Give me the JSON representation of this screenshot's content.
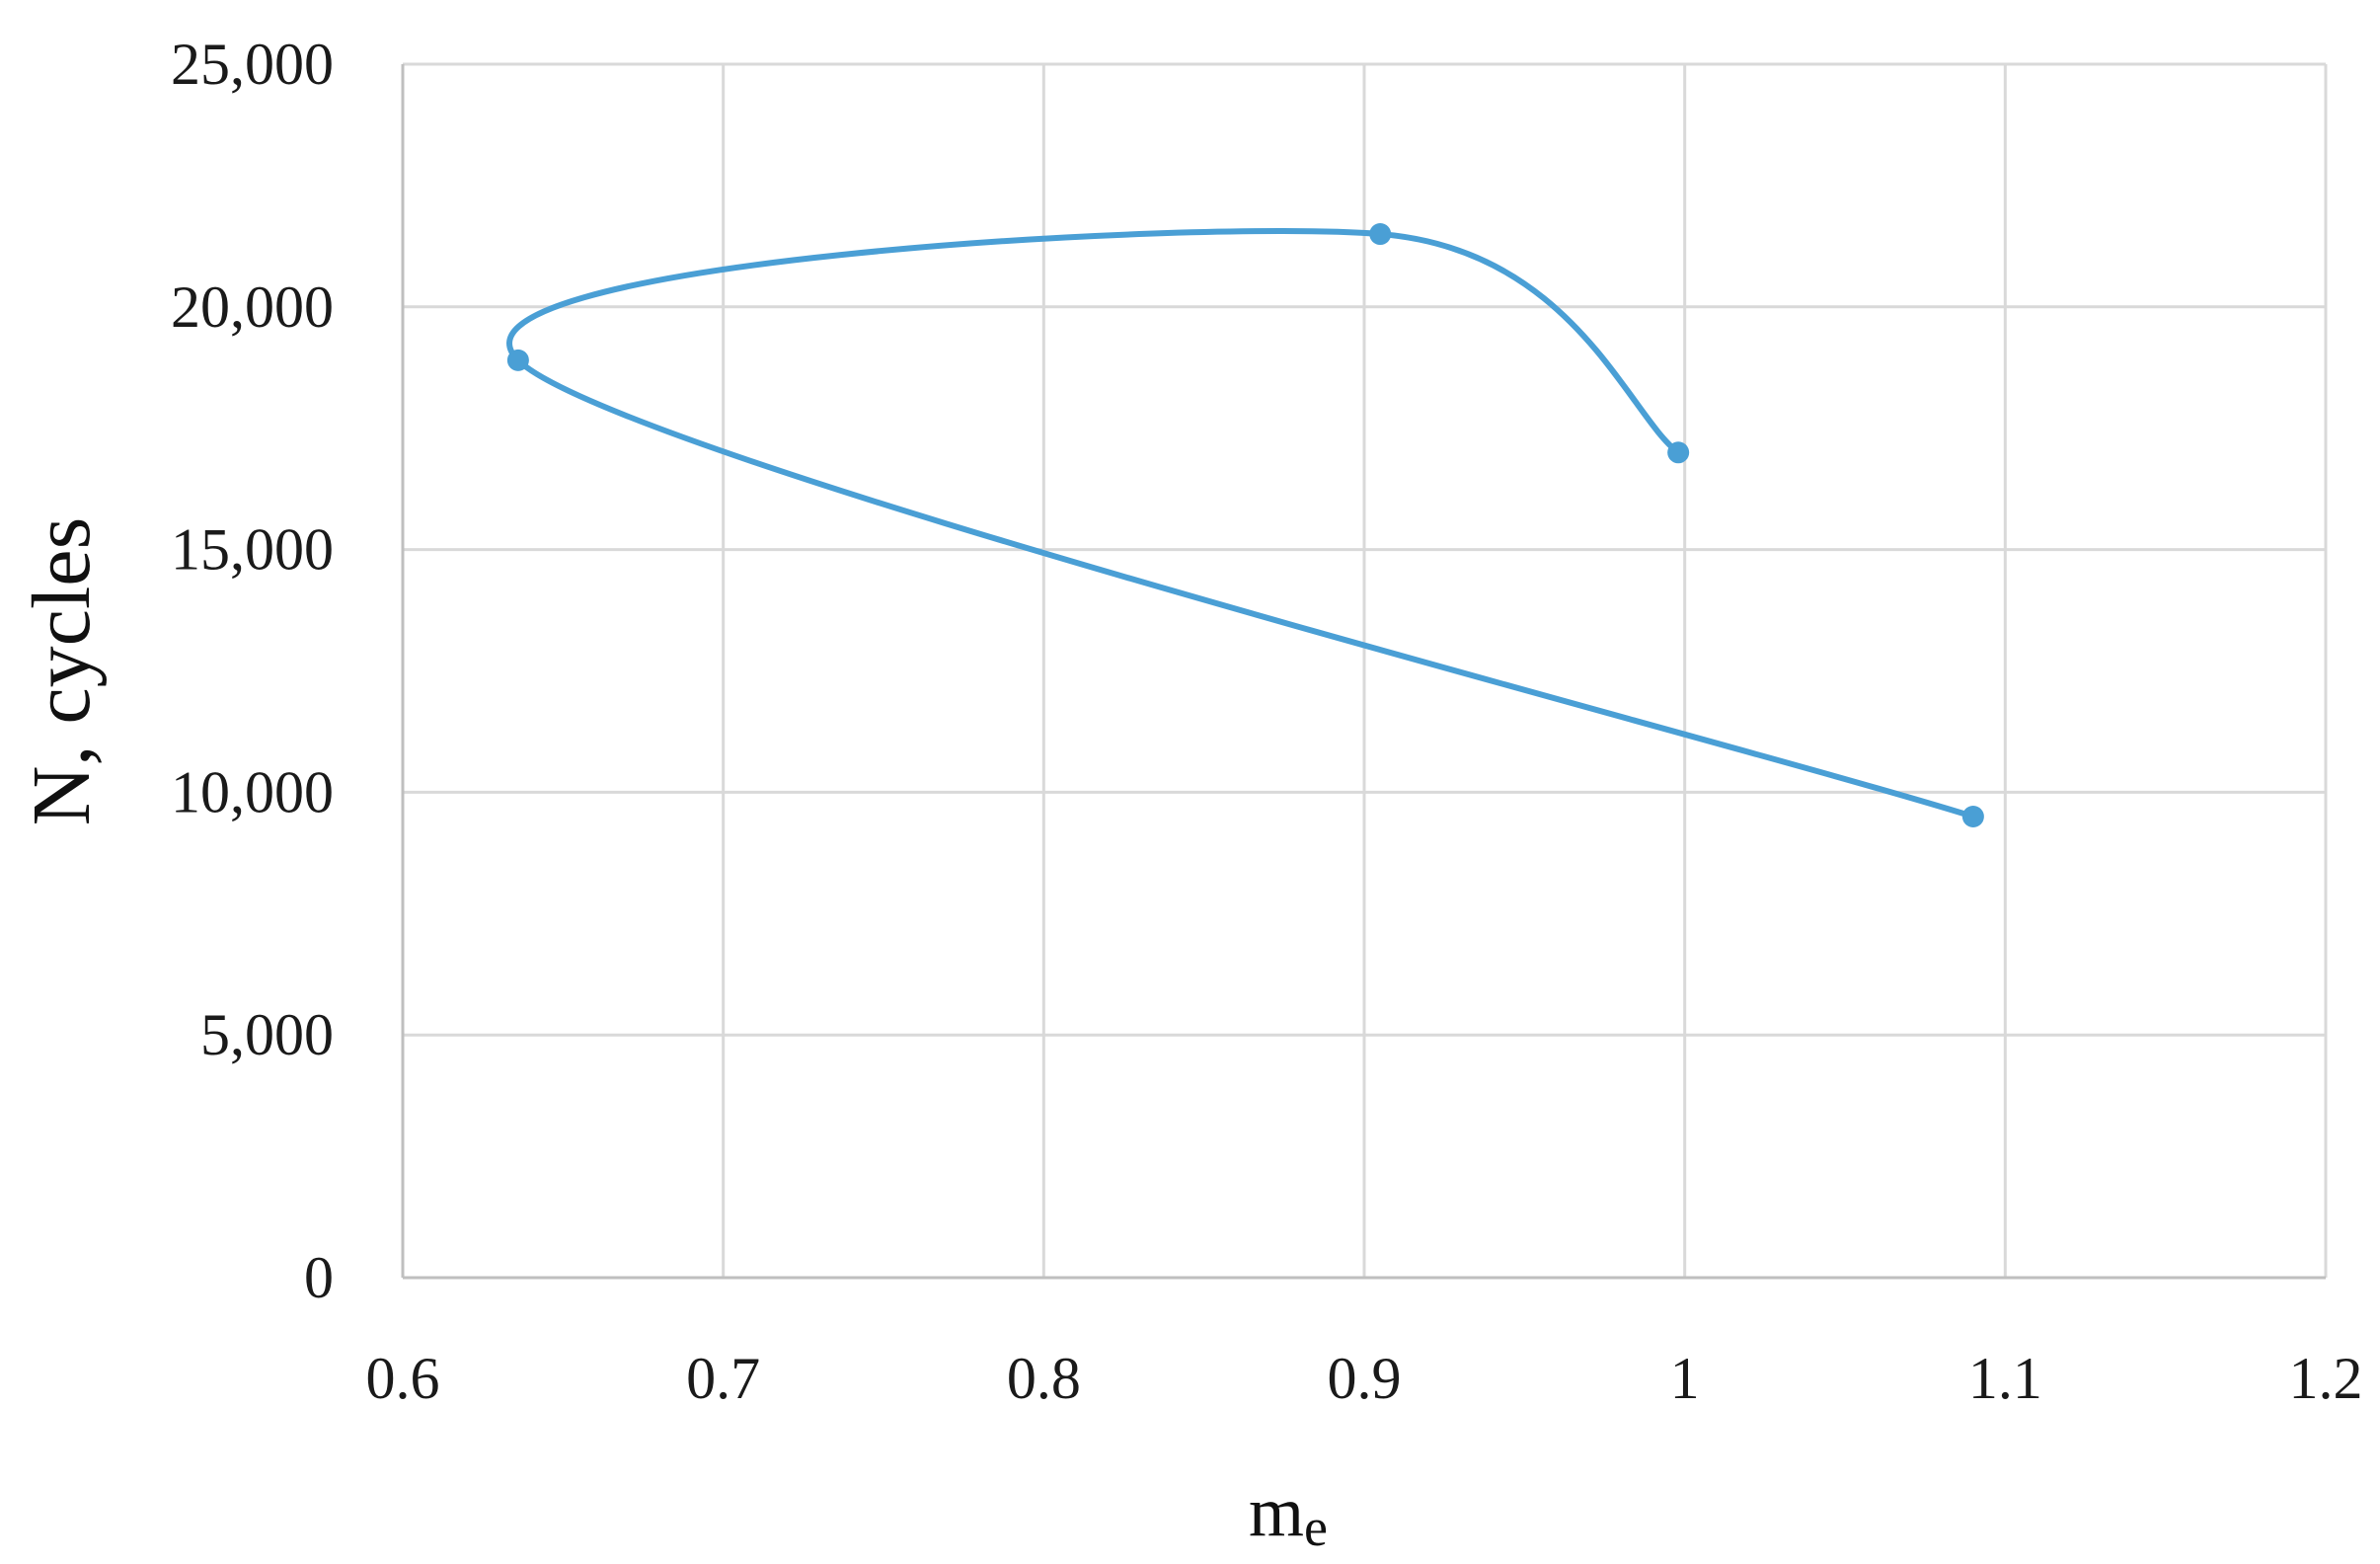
{
  "chart_data": {
    "type": "scatter",
    "title": "",
    "xlabel": "me",
    "ylabel": "N, cycles",
    "xlim": [
      0.6,
      1.2
    ],
    "ylim": [
      0,
      25000
    ],
    "x_ticks": [
      0.6,
      0.7,
      0.8,
      0.9,
      1.0,
      1.1,
      1.2
    ],
    "x_tick_labels": [
      "0.6",
      "0.7",
      "0.8",
      "0.9",
      "1",
      "1.1",
      "1.2"
    ],
    "y_ticks": [
      0,
      5000,
      10000,
      15000,
      20000,
      25000
    ],
    "y_tick_labels": [
      "0",
      "5,000",
      "10,000",
      "15,000",
      "20,000",
      "25,000"
    ],
    "grid": true,
    "legend": "none",
    "series": [
      {
        "color": "#4a9fd5",
        "smooth": true,
        "points": [
          {
            "x": 1.09,
            "y": 9500
          },
          {
            "x": 0.636,
            "y": 18900
          },
          {
            "x": 0.905,
            "y": 21500
          },
          {
            "x": 0.998,
            "y": 17000
          }
        ]
      }
    ]
  }
}
